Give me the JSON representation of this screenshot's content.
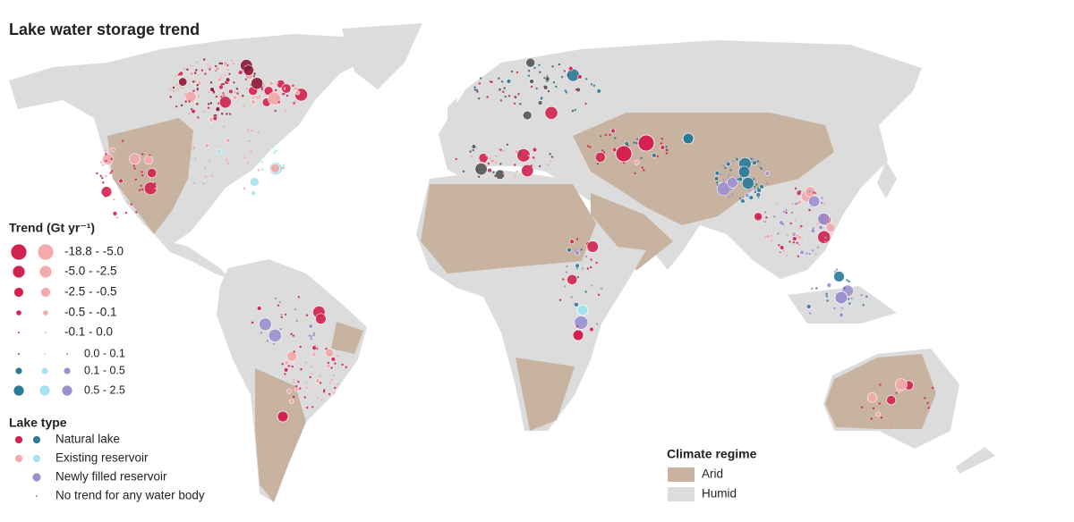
{
  "title": "Lake water storage trend",
  "trend_legend": {
    "title": "Trend (Gt yr⁻¹)",
    "classes": [
      "-18.8 - -5.0",
      "-5.0 - -2.5",
      "-2.5 - -0.5",
      "-0.5 - -0.1",
      "-0.1 - 0.0",
      "0.0 - 0.1",
      "0.1 - 0.5",
      "0.5 - 2.5"
    ]
  },
  "lake_type_legend": {
    "title": "Lake type",
    "items": [
      "Natural lake",
      "Existing reservoir",
      "Newly filled reservoir",
      "No trend for any water body"
    ]
  },
  "climate_legend": {
    "title": "Climate regime",
    "items": [
      "Arid",
      "Humid"
    ]
  }
}
